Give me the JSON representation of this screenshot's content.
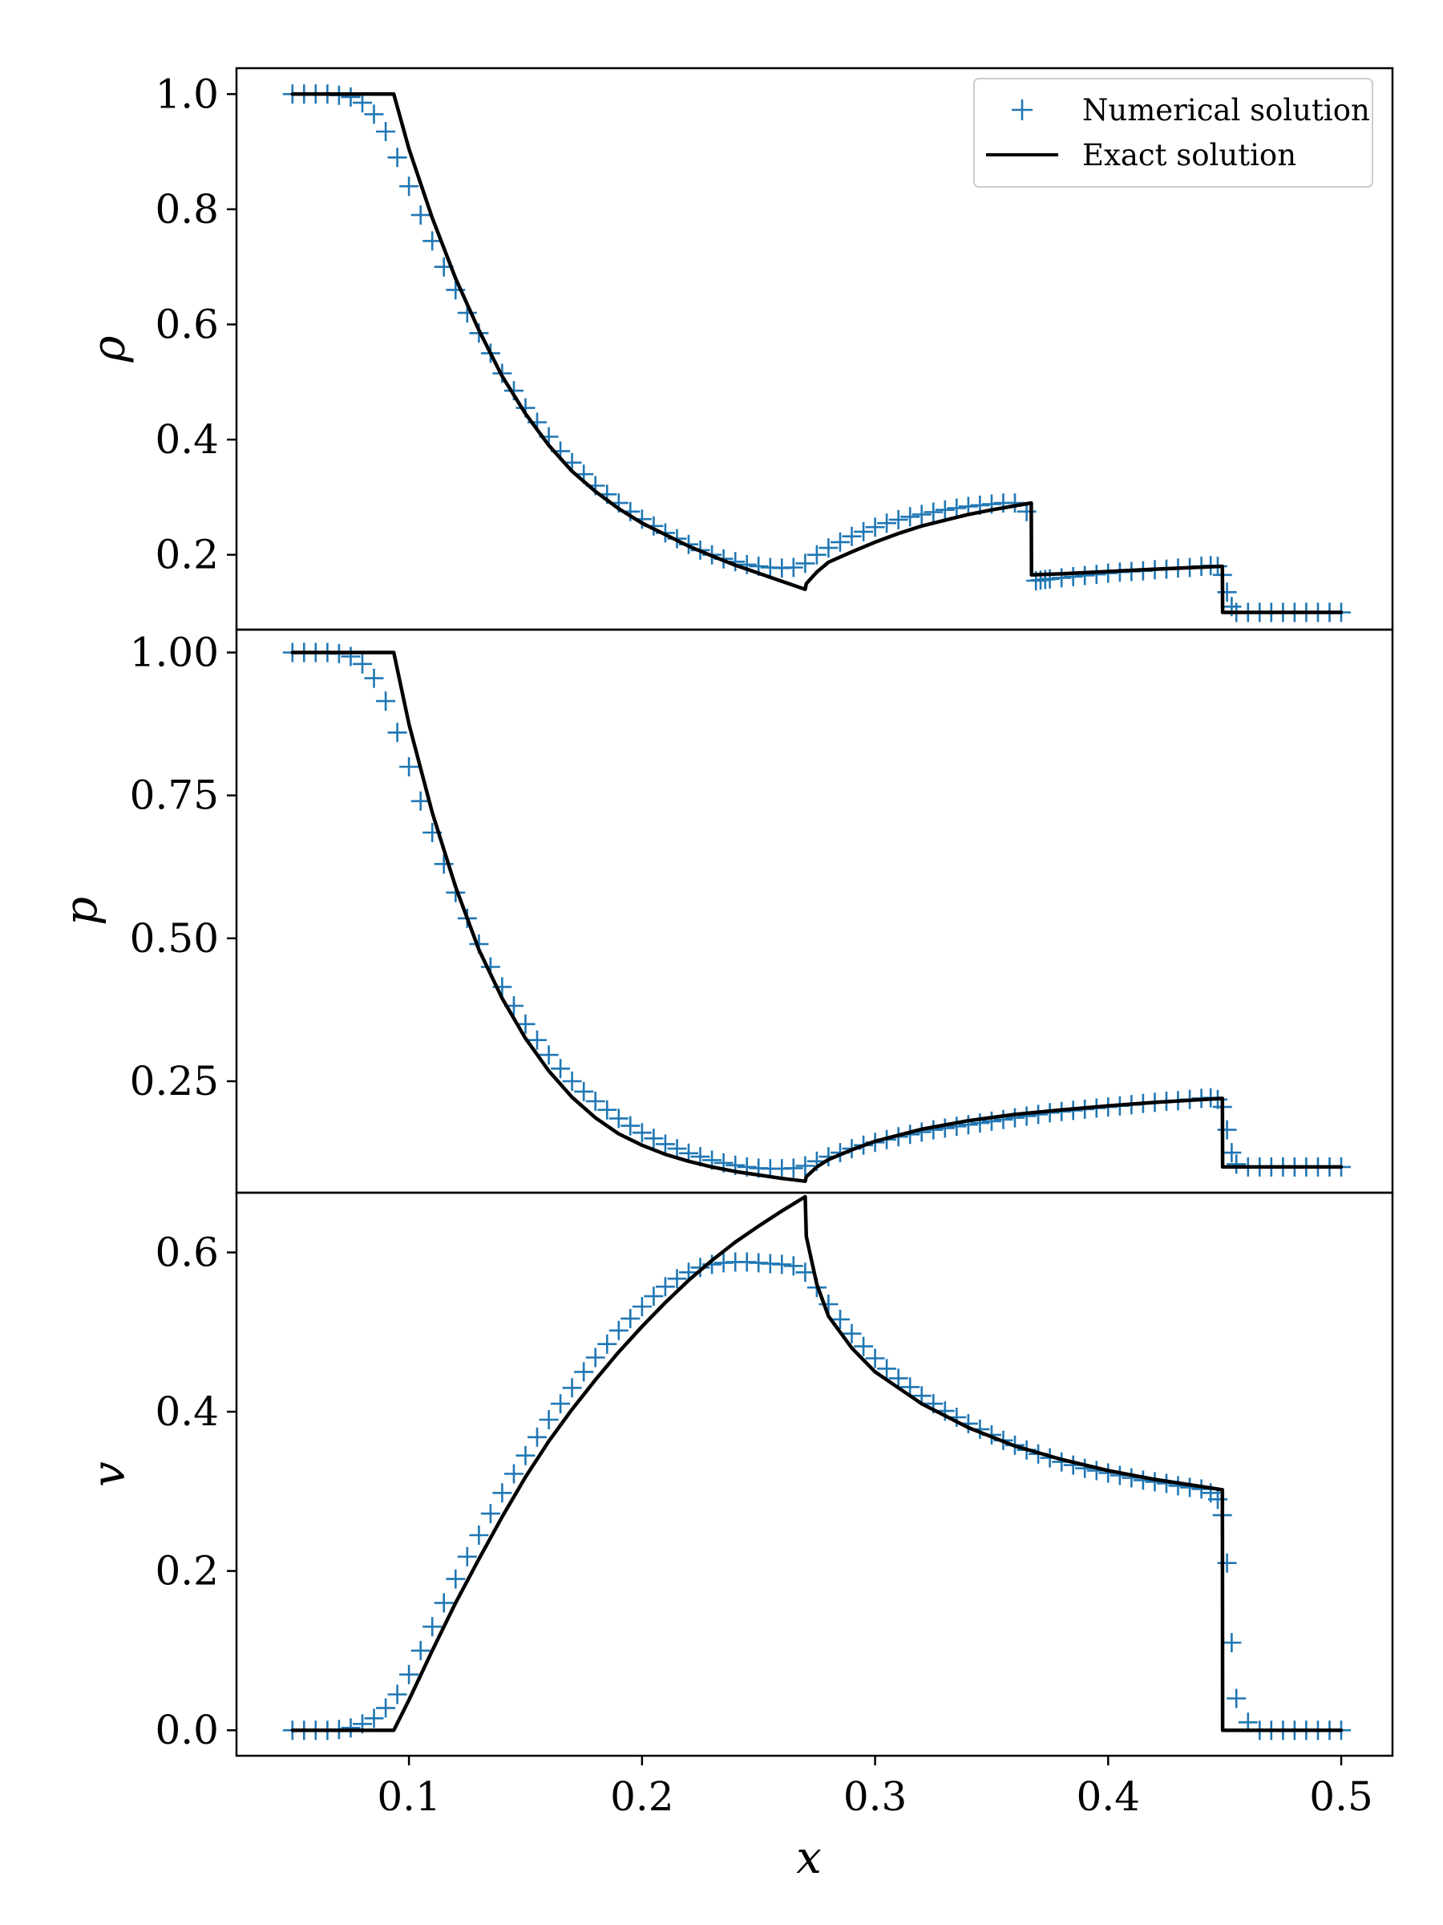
{
  "colors": {
    "numerical": "#1f77b4",
    "exact": "#000000",
    "axes": "#000000",
    "background": "#ffffff",
    "legend_border": "#cccccc"
  },
  "legend": {
    "placement": "top-right of first panel",
    "numerical_label": "Numerical solution",
    "exact_label": "Exact solution"
  },
  "x_axis": {
    "label": "x",
    "range": [
      0.026,
      0.522
    ],
    "ticks": [
      0.1,
      0.2,
      0.3,
      0.4,
      0.5
    ],
    "tick_labels": [
      "0.1",
      "0.2",
      "0.3",
      "0.4",
      "0.5"
    ]
  },
  "chart_data": [
    {
      "type": "line",
      "ylabel": "ρ",
      "ylim": [
        0.07,
        1.045
      ],
      "yticks": [
        0.2,
        0.4,
        0.6,
        0.8,
        1.0
      ],
      "ytick_labels": [
        "0.2",
        "0.4",
        "0.6",
        "0.8",
        "1.0"
      ],
      "series": [
        {
          "name": "Exact solution",
          "style": "line",
          "x": [
            0.05,
            0.0935,
            0.1,
            0.11,
            0.12,
            0.13,
            0.14,
            0.15,
            0.16,
            0.17,
            0.18,
            0.19,
            0.2,
            0.21,
            0.22,
            0.23,
            0.24,
            0.25,
            0.26,
            0.27,
            0.2705,
            0.275,
            0.28,
            0.29,
            0.3,
            0.31,
            0.32,
            0.33,
            0.34,
            0.35,
            0.36,
            0.367,
            0.3671,
            0.38,
            0.4,
            0.42,
            0.449,
            0.4491,
            0.5
          ],
          "y": [
            1.0,
            1.0,
            0.905,
            0.785,
            0.68,
            0.59,
            0.51,
            0.445,
            0.39,
            0.345,
            0.31,
            0.28,
            0.255,
            0.235,
            0.215,
            0.198,
            0.182,
            0.168,
            0.154,
            0.14,
            0.15,
            0.17,
            0.187,
            0.205,
            0.222,
            0.237,
            0.25,
            0.26,
            0.27,
            0.278,
            0.285,
            0.29,
            0.165,
            0.167,
            0.171,
            0.175,
            0.18,
            0.1,
            0.1
          ]
        },
        {
          "name": "Numerical solution",
          "style": "marker-plus",
          "x": [
            0.05,
            0.055,
            0.06,
            0.065,
            0.07,
            0.075,
            0.08,
            0.085,
            0.09,
            0.095,
            0.1,
            0.105,
            0.11,
            0.115,
            0.12,
            0.125,
            0.13,
            0.135,
            0.14,
            0.145,
            0.15,
            0.155,
            0.16,
            0.165,
            0.17,
            0.175,
            0.18,
            0.185,
            0.19,
            0.195,
            0.2,
            0.205,
            0.21,
            0.215,
            0.22,
            0.225,
            0.23,
            0.235,
            0.24,
            0.245,
            0.25,
            0.255,
            0.26,
            0.265,
            0.27,
            0.275,
            0.28,
            0.285,
            0.29,
            0.295,
            0.3,
            0.305,
            0.31,
            0.315,
            0.32,
            0.325,
            0.33,
            0.335,
            0.34,
            0.345,
            0.35,
            0.355,
            0.36,
            0.365,
            0.369,
            0.371,
            0.373,
            0.375,
            0.38,
            0.385,
            0.39,
            0.395,
            0.4,
            0.405,
            0.41,
            0.415,
            0.42,
            0.425,
            0.43,
            0.435,
            0.44,
            0.444,
            0.447,
            0.449,
            0.451,
            0.453,
            0.455,
            0.46,
            0.465,
            0.47,
            0.475,
            0.48,
            0.485,
            0.49,
            0.495,
            0.5
          ],
          "y": [
            1.0,
            1.0,
            1.0,
            1.0,
            0.998,
            0.995,
            0.985,
            0.965,
            0.935,
            0.89,
            0.84,
            0.79,
            0.745,
            0.7,
            0.66,
            0.62,
            0.585,
            0.55,
            0.515,
            0.485,
            0.455,
            0.43,
            0.405,
            0.38,
            0.36,
            0.34,
            0.32,
            0.305,
            0.29,
            0.275,
            0.262,
            0.25,
            0.238,
            0.228,
            0.218,
            0.208,
            0.2,
            0.193,
            0.188,
            0.183,
            0.18,
            0.178,
            0.177,
            0.178,
            0.185,
            0.2,
            0.212,
            0.222,
            0.232,
            0.24,
            0.248,
            0.255,
            0.261,
            0.266,
            0.27,
            0.274,
            0.278,
            0.281,
            0.284,
            0.286,
            0.288,
            0.29,
            0.29,
            0.275,
            0.155,
            0.156,
            0.157,
            0.158,
            0.16,
            0.162,
            0.164,
            0.166,
            0.168,
            0.17,
            0.171,
            0.172,
            0.174,
            0.175,
            0.177,
            0.178,
            0.18,
            0.181,
            0.18,
            0.165,
            0.135,
            0.11,
            0.1,
            0.1,
            0.1,
            0.1,
            0.1,
            0.1,
            0.1,
            0.1,
            0.1,
            0.1
          ]
        }
      ]
    },
    {
      "type": "line",
      "ylabel": "p",
      "ylim": [
        0.055,
        1.04
      ],
      "yticks": [
        0.25,
        0.5,
        0.75,
        1.0
      ],
      "ytick_labels": [
        "0.25",
        "0.50",
        "0.75",
        "1.00"
      ],
      "series": [
        {
          "name": "Exact solution",
          "style": "line",
          "x": [
            0.05,
            0.0935,
            0.1,
            0.11,
            0.12,
            0.13,
            0.14,
            0.15,
            0.16,
            0.17,
            0.18,
            0.19,
            0.2,
            0.21,
            0.22,
            0.23,
            0.24,
            0.25,
            0.26,
            0.27,
            0.2705,
            0.275,
            0.28,
            0.29,
            0.3,
            0.32,
            0.34,
            0.36,
            0.38,
            0.4,
            0.42,
            0.449,
            0.4491,
            0.5
          ],
          "y": [
            1.0,
            1.0,
            0.875,
            0.72,
            0.59,
            0.48,
            0.395,
            0.325,
            0.268,
            0.222,
            0.186,
            0.158,
            0.138,
            0.122,
            0.11,
            0.1,
            0.092,
            0.086,
            0.08,
            0.075,
            0.083,
            0.1,
            0.113,
            0.13,
            0.145,
            0.166,
            0.181,
            0.192,
            0.2,
            0.207,
            0.213,
            0.22,
            0.1,
            0.1
          ]
        },
        {
          "name": "Numerical solution",
          "style": "marker-plus",
          "x": [
            0.05,
            0.055,
            0.06,
            0.065,
            0.07,
            0.075,
            0.08,
            0.085,
            0.09,
            0.095,
            0.1,
            0.105,
            0.11,
            0.115,
            0.12,
            0.125,
            0.13,
            0.135,
            0.14,
            0.145,
            0.15,
            0.155,
            0.16,
            0.165,
            0.17,
            0.175,
            0.18,
            0.185,
            0.19,
            0.195,
            0.2,
            0.205,
            0.21,
            0.215,
            0.22,
            0.225,
            0.23,
            0.235,
            0.24,
            0.245,
            0.25,
            0.255,
            0.26,
            0.265,
            0.27,
            0.275,
            0.28,
            0.285,
            0.29,
            0.295,
            0.3,
            0.305,
            0.31,
            0.315,
            0.32,
            0.325,
            0.33,
            0.335,
            0.34,
            0.345,
            0.35,
            0.355,
            0.36,
            0.365,
            0.37,
            0.375,
            0.38,
            0.385,
            0.39,
            0.395,
            0.4,
            0.405,
            0.41,
            0.415,
            0.42,
            0.425,
            0.43,
            0.435,
            0.44,
            0.444,
            0.447,
            0.449,
            0.451,
            0.453,
            0.455,
            0.46,
            0.465,
            0.47,
            0.475,
            0.48,
            0.485,
            0.49,
            0.495,
            0.5
          ],
          "y": [
            1.0,
            1.0,
            1.0,
            1.0,
            0.998,
            0.993,
            0.98,
            0.955,
            0.915,
            0.86,
            0.8,
            0.74,
            0.685,
            0.63,
            0.58,
            0.535,
            0.49,
            0.45,
            0.415,
            0.382,
            0.35,
            0.322,
            0.296,
            0.272,
            0.25,
            0.232,
            0.215,
            0.2,
            0.185,
            0.172,
            0.16,
            0.15,
            0.14,
            0.132,
            0.124,
            0.118,
            0.112,
            0.107,
            0.103,
            0.1,
            0.098,
            0.097,
            0.097,
            0.098,
            0.102,
            0.11,
            0.118,
            0.125,
            0.132,
            0.138,
            0.143,
            0.148,
            0.153,
            0.157,
            0.161,
            0.165,
            0.168,
            0.171,
            0.174,
            0.177,
            0.18,
            0.183,
            0.186,
            0.189,
            0.192,
            0.195,
            0.197,
            0.199,
            0.201,
            0.203,
            0.205,
            0.207,
            0.209,
            0.211,
            0.213,
            0.215,
            0.216,
            0.218,
            0.22,
            0.221,
            0.218,
            0.205,
            0.165,
            0.125,
            0.105,
            0.1,
            0.1,
            0.1,
            0.1,
            0.1,
            0.1,
            0.1,
            0.1,
            0.1
          ]
        }
      ]
    },
    {
      "type": "line",
      "ylabel": "v",
      "xlabel": "x",
      "ylim": [
        -0.032,
        0.675
      ],
      "yticks": [
        0.0,
        0.2,
        0.4,
        0.6
      ],
      "ytick_labels": [
        "0.0",
        "0.2",
        "0.4",
        "0.6"
      ],
      "series": [
        {
          "name": "Exact solution",
          "style": "line",
          "x": [
            0.05,
            0.0935,
            0.1,
            0.11,
            0.12,
            0.13,
            0.14,
            0.15,
            0.16,
            0.17,
            0.18,
            0.19,
            0.2,
            0.21,
            0.22,
            0.23,
            0.24,
            0.25,
            0.26,
            0.27,
            0.2705,
            0.275,
            0.28,
            0.29,
            0.3,
            0.31,
            0.32,
            0.34,
            0.36,
            0.38,
            0.4,
            0.42,
            0.44,
            0.449,
            0.4491,
            0.5
          ],
          "y": [
            0.0,
            0.0,
            0.038,
            0.1,
            0.16,
            0.215,
            0.268,
            0.318,
            0.363,
            0.403,
            0.44,
            0.475,
            0.507,
            0.537,
            0.565,
            0.59,
            0.613,
            0.633,
            0.652,
            0.67,
            0.62,
            0.56,
            0.52,
            0.48,
            0.45,
            0.43,
            0.41,
            0.38,
            0.357,
            0.34,
            0.326,
            0.315,
            0.306,
            0.302,
            0.0,
            0.0
          ]
        },
        {
          "name": "Numerical solution",
          "style": "marker-plus",
          "x": [
            0.05,
            0.055,
            0.06,
            0.065,
            0.07,
            0.075,
            0.08,
            0.085,
            0.09,
            0.095,
            0.1,
            0.105,
            0.11,
            0.115,
            0.12,
            0.125,
            0.13,
            0.135,
            0.14,
            0.145,
            0.15,
            0.155,
            0.16,
            0.165,
            0.17,
            0.175,
            0.18,
            0.185,
            0.19,
            0.195,
            0.2,
            0.205,
            0.21,
            0.215,
            0.22,
            0.225,
            0.23,
            0.235,
            0.24,
            0.245,
            0.25,
            0.255,
            0.26,
            0.265,
            0.27,
            0.275,
            0.28,
            0.285,
            0.29,
            0.295,
            0.3,
            0.305,
            0.31,
            0.315,
            0.32,
            0.325,
            0.33,
            0.335,
            0.34,
            0.345,
            0.35,
            0.355,
            0.36,
            0.365,
            0.37,
            0.375,
            0.38,
            0.385,
            0.39,
            0.395,
            0.4,
            0.405,
            0.41,
            0.415,
            0.42,
            0.425,
            0.43,
            0.435,
            0.44,
            0.444,
            0.447,
            0.449,
            0.451,
            0.453,
            0.455,
            0.46,
            0.465,
            0.47,
            0.475,
            0.48,
            0.485,
            0.49,
            0.495,
            0.5
          ],
          "y": [
            0.0,
            0.0,
            0.0,
            0.0,
            0.001,
            0.003,
            0.008,
            0.015,
            0.028,
            0.045,
            0.07,
            0.1,
            0.13,
            0.16,
            0.19,
            0.218,
            0.245,
            0.272,
            0.298,
            0.322,
            0.345,
            0.368,
            0.39,
            0.41,
            0.43,
            0.45,
            0.468,
            0.485,
            0.502,
            0.517,
            0.532,
            0.545,
            0.557,
            0.567,
            0.575,
            0.581,
            0.585,
            0.587,
            0.588,
            0.588,
            0.587,
            0.586,
            0.585,
            0.583,
            0.575,
            0.556,
            0.535,
            0.516,
            0.498,
            0.482,
            0.467,
            0.454,
            0.442,
            0.431,
            0.42,
            0.41,
            0.401,
            0.393,
            0.385,
            0.378,
            0.371,
            0.364,
            0.358,
            0.352,
            0.347,
            0.342,
            0.337,
            0.333,
            0.329,
            0.326,
            0.323,
            0.32,
            0.317,
            0.314,
            0.312,
            0.31,
            0.307,
            0.305,
            0.303,
            0.298,
            0.29,
            0.27,
            0.21,
            0.11,
            0.04,
            0.01,
            0.0,
            0.0,
            0.0,
            0.0,
            0.0,
            0.0,
            0.0,
            0.0
          ]
        }
      ]
    }
  ]
}
